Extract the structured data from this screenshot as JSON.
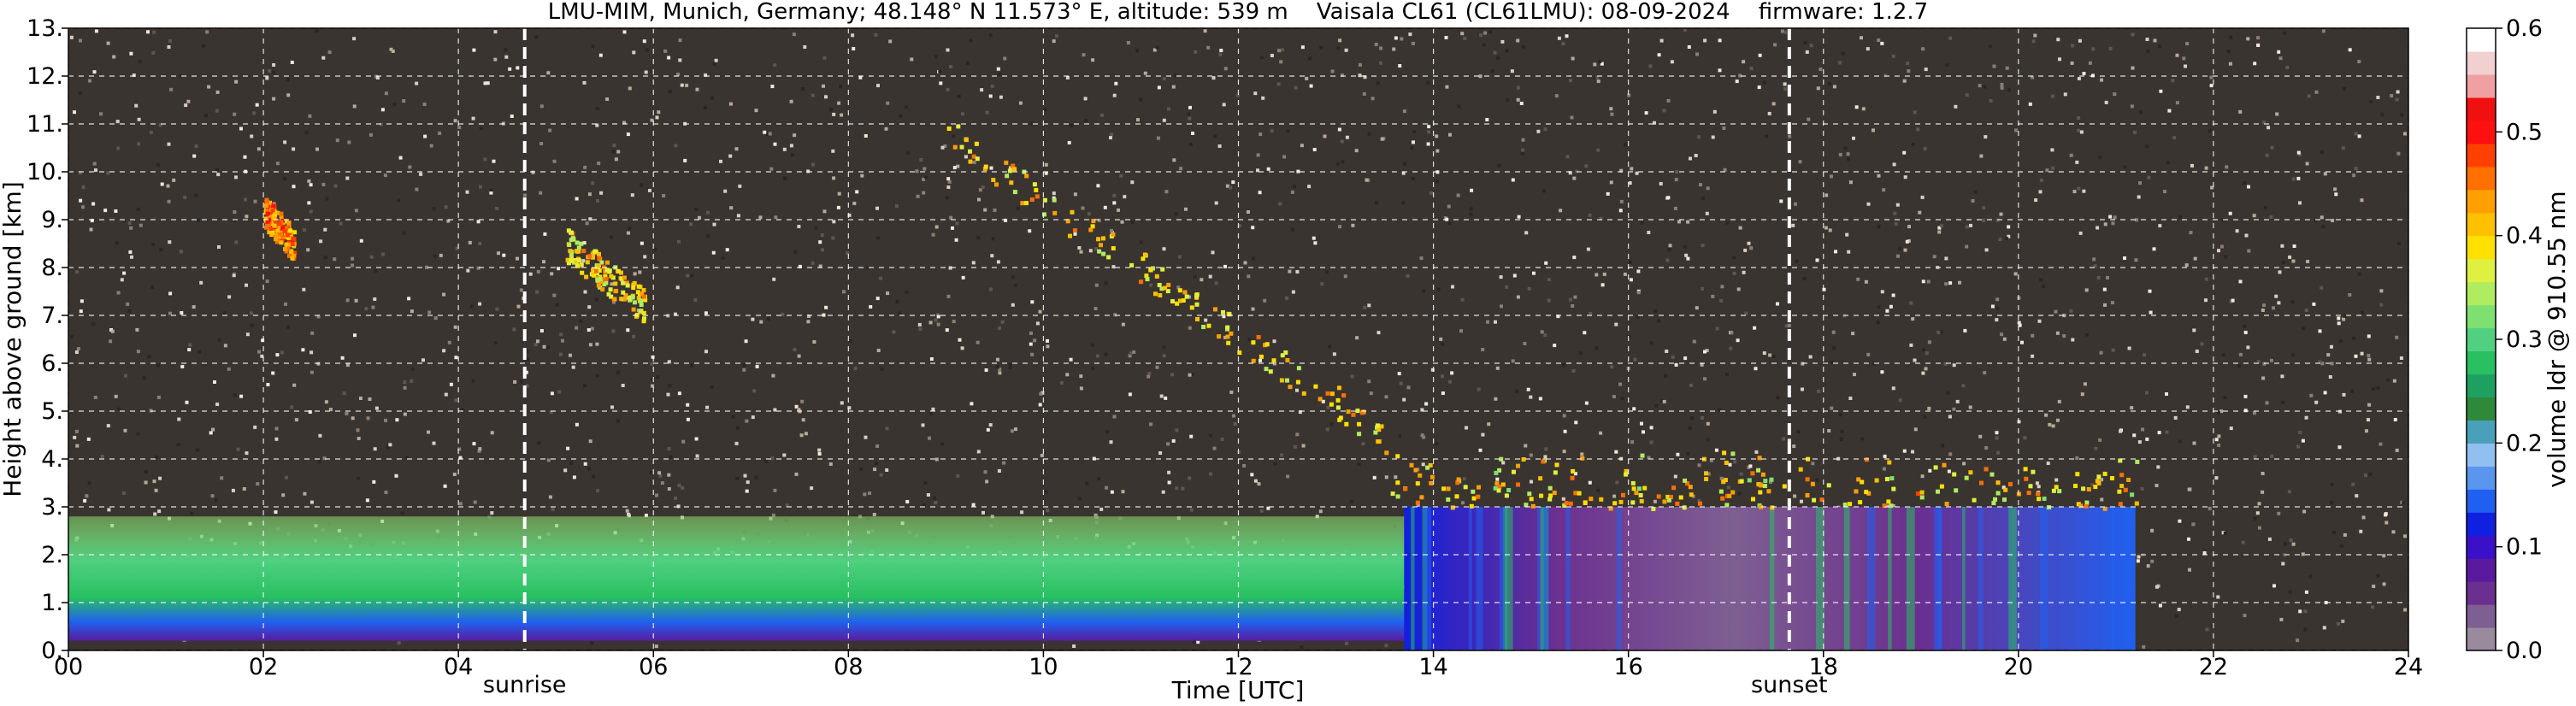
{
  "chart_data": {
    "type": "heatmap",
    "title": "LMU-MIM, Munich, Germany; 48.148° N 11.573° E, altitude: 539 m    Vaisala CL61 (CL61LMU): 08-09-2024    firmware: 1.2.7",
    "xlabel": "Time [UTC]",
    "ylabel": "Height above ground [km]",
    "xlim": [
      0,
      24
    ],
    "ylim": [
      0,
      13
    ],
    "x_ticks": [
      0,
      2,
      4,
      6,
      8,
      10,
      12,
      14,
      16,
      18,
      20,
      22,
      24
    ],
    "x_tick_labels": [
      "00",
      "02",
      "04",
      "06",
      "08",
      "10",
      "12",
      "14",
      "16",
      "18",
      "20",
      "22",
      "24"
    ],
    "y_ticks": [
      0,
      1,
      2,
      3,
      4,
      5,
      6,
      7,
      8,
      9,
      10,
      11,
      12,
      13
    ],
    "y_tick_labels": [
      "0.",
      "1.",
      "2.",
      "3.",
      "4.",
      "5.",
      "6.",
      "7.",
      "8.",
      "9.",
      "10.",
      "11.",
      "12.",
      "13."
    ],
    "grid": true,
    "markers": [
      {
        "label": "sunrise",
        "x": 4.68
      },
      {
        "label": "sunset",
        "x": 17.65
      }
    ],
    "colorbar": {
      "label": "volume ldr @ 910.55 nm",
      "range": [
        0.0,
        0.6
      ],
      "ticks": [
        0.0,
        0.1,
        0.2,
        0.3,
        0.4,
        0.5,
        0.6
      ],
      "tick_labels": [
        "0.0",
        "0.1",
        "0.2",
        "0.3",
        "0.4",
        "0.5",
        "0.6"
      ],
      "colors": [
        "#9a8a9e",
        "#7e5f92",
        "#6b2f8f",
        "#5a1a9e",
        "#3a10c8",
        "#1020e0",
        "#2060f0",
        "#5a96f0",
        "#90bff0",
        "#4aa0b8",
        "#2e8a3a",
        "#1ea060",
        "#28c060",
        "#50d080",
        "#7ee070",
        "#b0ec60",
        "#e0f040",
        "#ffe000",
        "#ffc000",
        "#ffa000",
        "#ff7000",
        "#ff4000",
        "#ff1010",
        "#f01010",
        "#f0a0a0",
        "#f0d0d0",
        "#ffffff"
      ]
    },
    "regions": [
      {
        "name": "aerosol layer",
        "time": [
          0.0,
          13.7
        ],
        "height_km": [
          0.2,
          2.8
        ],
        "ldr": 0.2
      },
      {
        "name": "cirrus",
        "time": [
          9.0,
          13.5
        ],
        "height_km": [
          4.5,
          10.8
        ],
        "ldr": 0.4
      },
      {
        "name": "cirrus",
        "time": [
          5.1,
          5.9
        ],
        "height_km": [
          7.2,
          8.5
        ],
        "ldr": 0.4
      },
      {
        "name": "cirrus",
        "time": [
          2.0,
          2.3
        ],
        "height_km": [
          8.5,
          9.2
        ],
        "ldr": 0.45
      },
      {
        "name": "cloud layer",
        "time": [
          13.7,
          21.2
        ],
        "height_km": [
          0.0,
          3.0
        ],
        "ldr": 0.05
      },
      {
        "name": "cloud top",
        "time": [
          13.5,
          21.2
        ],
        "height_km": [
          3.0,
          4.3
        ],
        "ldr": 0.4
      }
    ]
  }
}
